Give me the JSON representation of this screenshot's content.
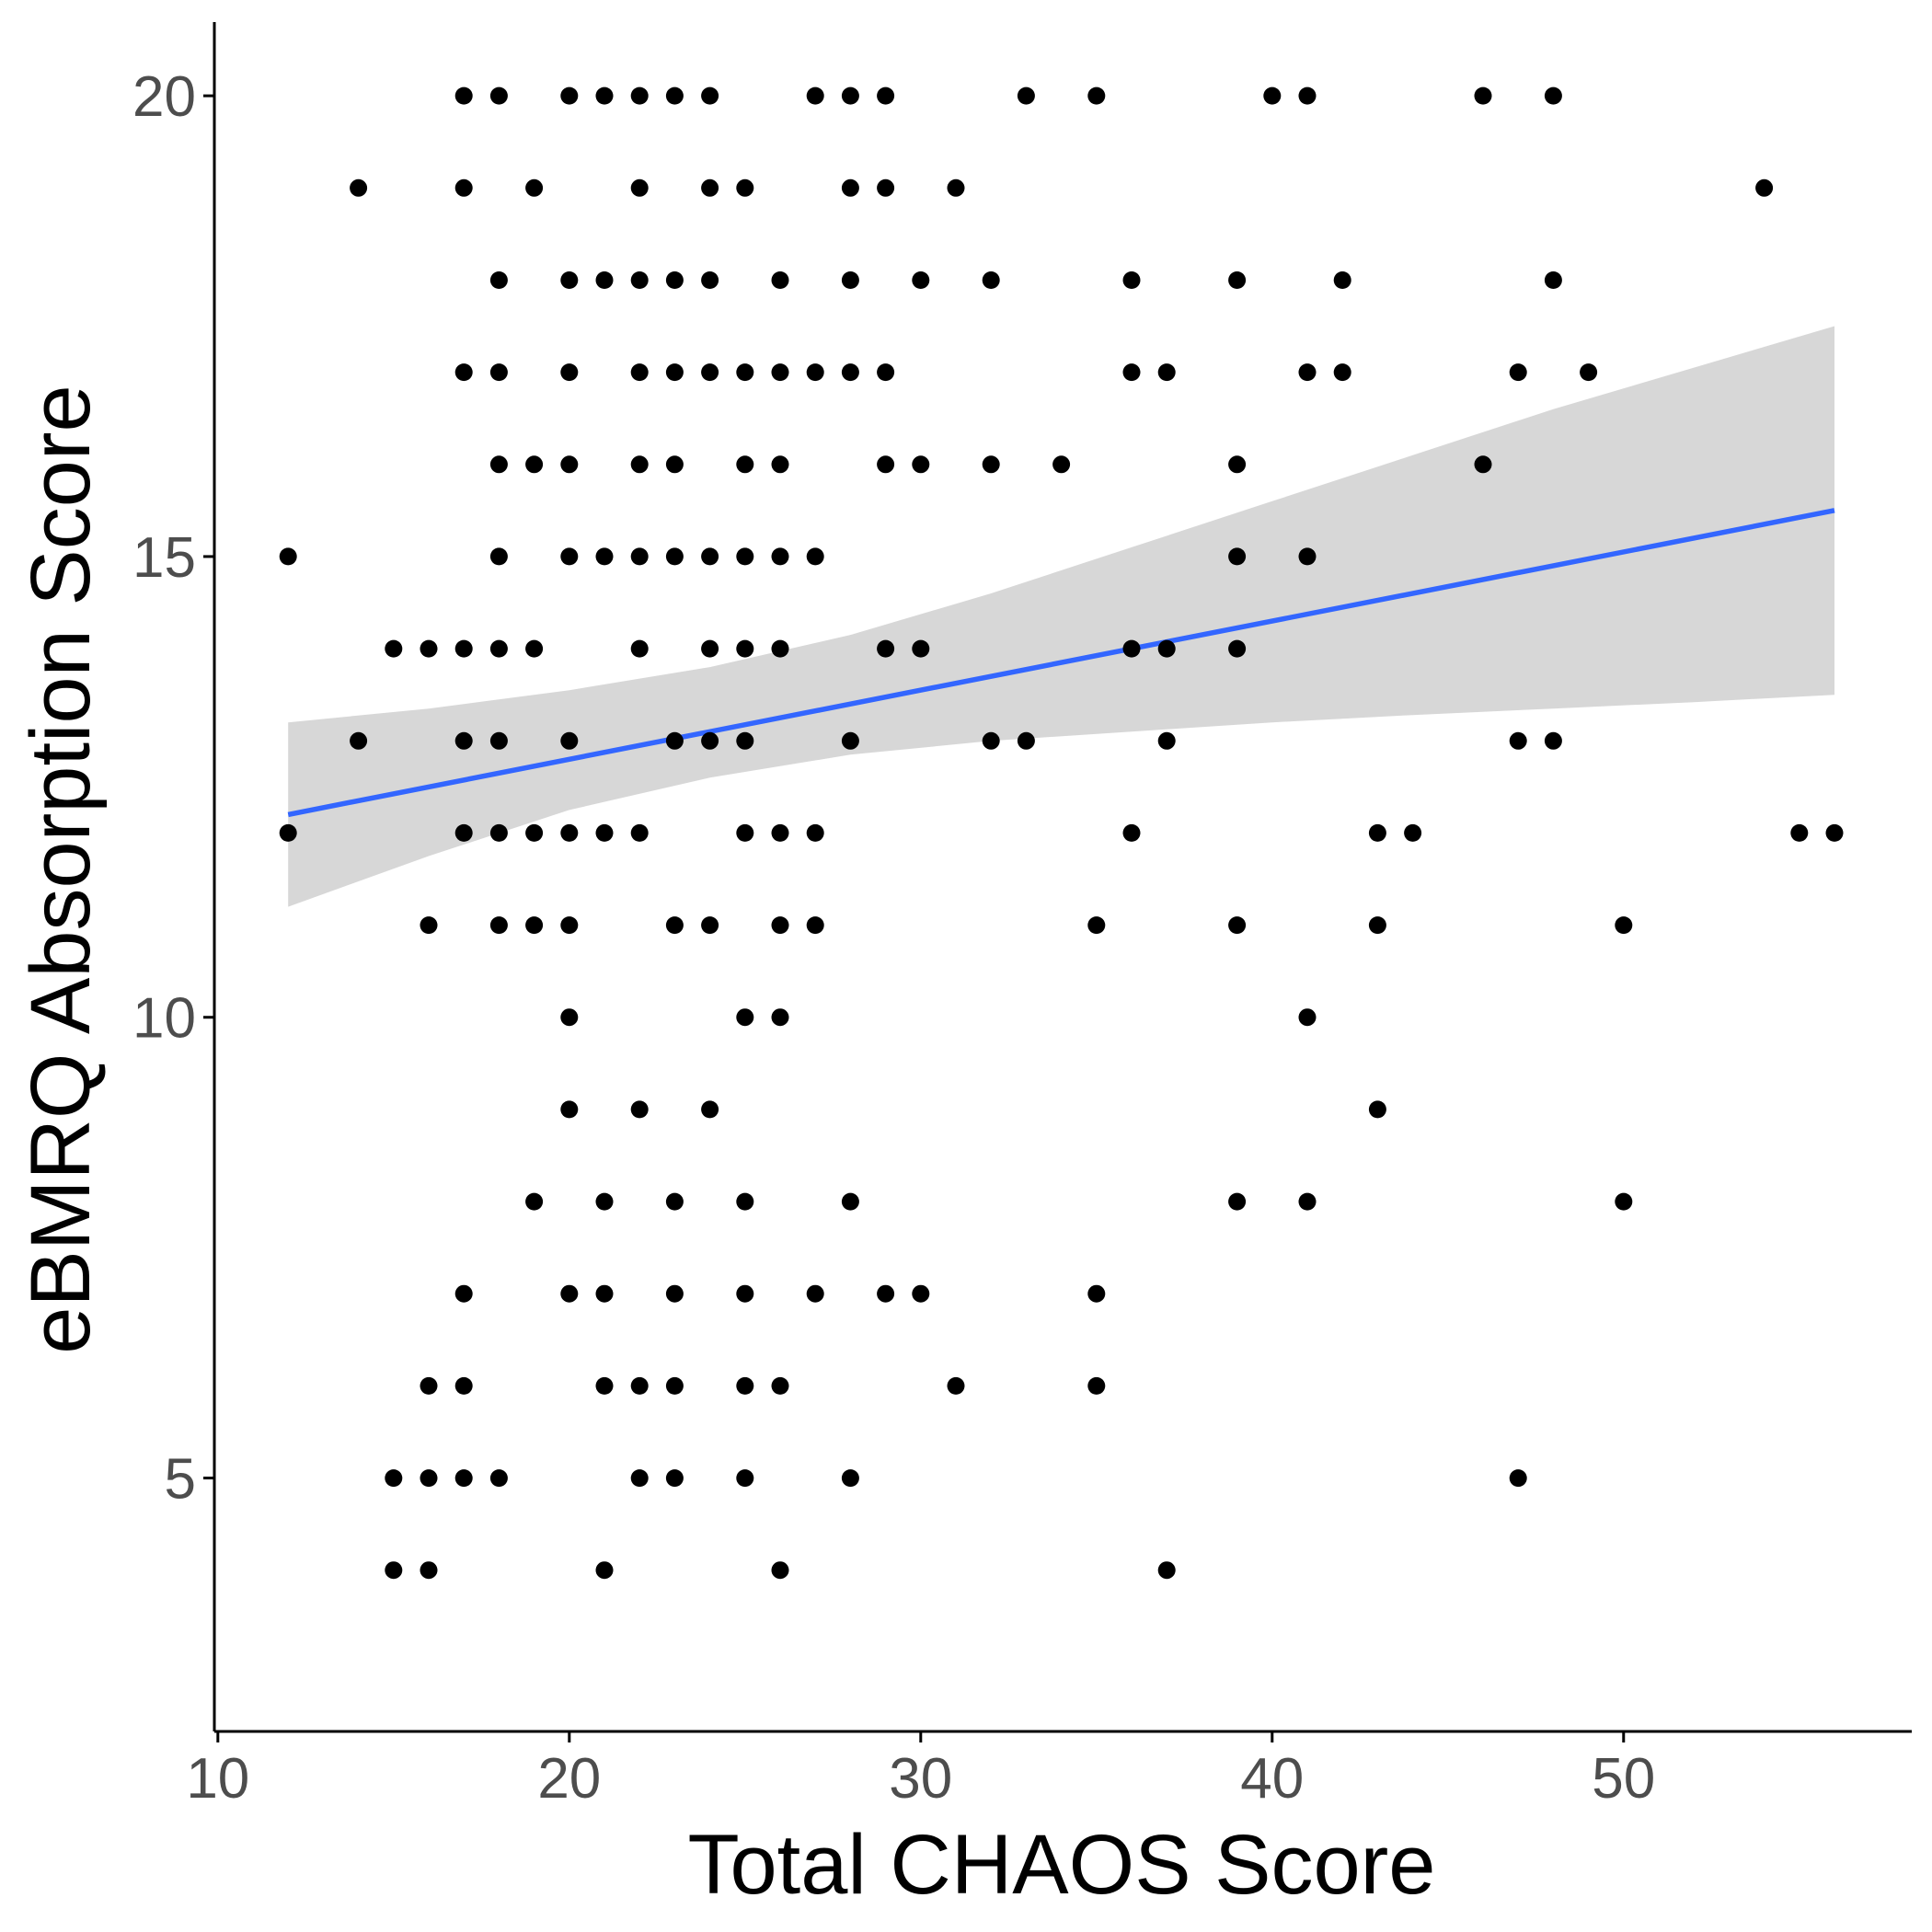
{
  "chart_data": {
    "type": "scatter",
    "xlabel": "Total CHAOS Score",
    "ylabel": "eBMRQ Absorption Score",
    "xlim": [
      9.9,
      58.2
    ],
    "ylim": [
      2.25,
      20.8
    ],
    "x_ticks": [
      10,
      20,
      30,
      40,
      50
    ],
    "y_ticks": [
      5,
      10,
      15,
      20
    ],
    "grid": false,
    "legend": "none",
    "colors": {
      "point": "#000000",
      "trend_line": "#3366ff",
      "confidence_band": "#d3d3d3",
      "axis": "#000000",
      "tick_label": "#4d4d4d"
    },
    "points": [
      [
        17,
        20
      ],
      [
        18,
        20
      ],
      [
        20,
        20
      ],
      [
        21,
        20
      ],
      [
        22,
        20
      ],
      [
        23,
        20
      ],
      [
        24,
        20
      ],
      [
        27,
        20
      ],
      [
        28,
        20
      ],
      [
        29,
        20
      ],
      [
        33,
        20
      ],
      [
        35,
        20
      ],
      [
        40,
        20
      ],
      [
        41,
        20
      ],
      [
        46,
        20
      ],
      [
        48,
        20
      ],
      [
        14,
        19
      ],
      [
        17,
        19
      ],
      [
        19,
        19
      ],
      [
        22,
        19
      ],
      [
        24,
        19
      ],
      [
        25,
        19
      ],
      [
        28,
        19
      ],
      [
        29,
        19
      ],
      [
        31,
        19
      ],
      [
        54,
        19
      ],
      [
        18,
        18
      ],
      [
        20,
        18
      ],
      [
        21,
        18
      ],
      [
        22,
        18
      ],
      [
        23,
        18
      ],
      [
        24,
        18
      ],
      [
        26,
        18
      ],
      [
        28,
        18
      ],
      [
        30,
        18
      ],
      [
        32,
        18
      ],
      [
        36,
        18
      ],
      [
        39,
        18
      ],
      [
        42,
        18
      ],
      [
        48,
        18
      ],
      [
        17,
        17
      ],
      [
        18,
        17
      ],
      [
        20,
        17
      ],
      [
        22,
        17
      ],
      [
        23,
        17
      ],
      [
        24,
        17
      ],
      [
        25,
        17
      ],
      [
        26,
        17
      ],
      [
        27,
        17
      ],
      [
        28,
        17
      ],
      [
        29,
        17
      ],
      [
        36,
        17
      ],
      [
        37,
        17
      ],
      [
        41,
        17
      ],
      [
        42,
        17
      ],
      [
        47,
        17
      ],
      [
        49,
        17
      ],
      [
        18,
        16
      ],
      [
        19,
        16
      ],
      [
        20,
        16
      ],
      [
        22,
        16
      ],
      [
        23,
        16
      ],
      [
        25,
        16
      ],
      [
        26,
        16
      ],
      [
        29,
        16
      ],
      [
        30,
        16
      ],
      [
        32,
        16
      ],
      [
        34,
        16
      ],
      [
        39,
        16
      ],
      [
        46,
        16
      ],
      [
        12,
        15
      ],
      [
        18,
        15
      ],
      [
        20,
        15
      ],
      [
        21,
        15
      ],
      [
        22,
        15
      ],
      [
        23,
        15
      ],
      [
        24,
        15
      ],
      [
        25,
        15
      ],
      [
        26,
        15
      ],
      [
        27,
        15
      ],
      [
        39,
        15
      ],
      [
        41,
        15
      ],
      [
        15,
        14
      ],
      [
        16,
        14
      ],
      [
        17,
        14
      ],
      [
        18,
        14
      ],
      [
        19,
        14
      ],
      [
        22,
        14
      ],
      [
        24,
        14
      ],
      [
        25,
        14
      ],
      [
        26,
        14
      ],
      [
        29,
        14
      ],
      [
        30,
        14
      ],
      [
        36,
        14
      ],
      [
        37,
        14
      ],
      [
        39,
        14
      ],
      [
        14,
        13
      ],
      [
        17,
        13
      ],
      [
        18,
        13
      ],
      [
        20,
        13
      ],
      [
        23,
        13
      ],
      [
        24,
        13
      ],
      [
        25,
        13
      ],
      [
        28,
        13
      ],
      [
        32,
        13
      ],
      [
        33,
        13
      ],
      [
        37,
        13
      ],
      [
        47,
        13
      ],
      [
        48,
        13
      ],
      [
        12,
        12
      ],
      [
        17,
        12
      ],
      [
        18,
        12
      ],
      [
        19,
        12
      ],
      [
        20,
        12
      ],
      [
        21,
        12
      ],
      [
        22,
        12
      ],
      [
        25,
        12
      ],
      [
        26,
        12
      ],
      [
        27,
        12
      ],
      [
        36,
        12
      ],
      [
        43,
        12
      ],
      [
        44,
        12
      ],
      [
        55,
        12
      ],
      [
        56,
        12
      ],
      [
        16,
        11
      ],
      [
        18,
        11
      ],
      [
        19,
        11
      ],
      [
        20,
        11
      ],
      [
        23,
        11
      ],
      [
        24,
        11
      ],
      [
        26,
        11
      ],
      [
        27,
        11
      ],
      [
        35,
        11
      ],
      [
        39,
        11
      ],
      [
        43,
        11
      ],
      [
        50,
        11
      ],
      [
        20,
        10
      ],
      [
        25,
        10
      ],
      [
        26,
        10
      ],
      [
        41,
        10
      ],
      [
        20,
        9
      ],
      [
        22,
        9
      ],
      [
        24,
        9
      ],
      [
        43,
        9
      ],
      [
        19,
        8
      ],
      [
        21,
        8
      ],
      [
        23,
        8
      ],
      [
        25,
        8
      ],
      [
        28,
        8
      ],
      [
        39,
        8
      ],
      [
        41,
        8
      ],
      [
        50,
        8
      ],
      [
        17,
        7
      ],
      [
        20,
        7
      ],
      [
        21,
        7
      ],
      [
        23,
        7
      ],
      [
        25,
        7
      ],
      [
        27,
        7
      ],
      [
        29,
        7
      ],
      [
        30,
        7
      ],
      [
        35,
        7
      ],
      [
        16,
        6
      ],
      [
        17,
        6
      ],
      [
        21,
        6
      ],
      [
        22,
        6
      ],
      [
        23,
        6
      ],
      [
        25,
        6
      ],
      [
        26,
        6
      ],
      [
        31,
        6
      ],
      [
        35,
        6
      ],
      [
        15,
        5
      ],
      [
        16,
        5
      ],
      [
        17,
        5
      ],
      [
        18,
        5
      ],
      [
        22,
        5
      ],
      [
        23,
        5
      ],
      [
        25,
        5
      ],
      [
        28,
        5
      ],
      [
        47,
        5
      ],
      [
        15,
        4
      ],
      [
        16,
        4
      ],
      [
        21,
        4
      ],
      [
        26,
        4
      ],
      [
        37,
        4
      ]
    ],
    "trend_line": {
      "x": [
        12,
        56
      ],
      "y": [
        12.2,
        15.5
      ]
    },
    "confidence_band": {
      "x": [
        12,
        16,
        20,
        24,
        28,
        32,
        36,
        40,
        44,
        48,
        52,
        56
      ],
      "lower": [
        11.2,
        11.75,
        12.25,
        12.6,
        12.85,
        13.0,
        13.1,
        13.2,
        13.28,
        13.35,
        13.42,
        13.5
      ],
      "upper": [
        13.2,
        13.35,
        13.55,
        13.8,
        14.15,
        14.6,
        15.1,
        15.6,
        16.1,
        16.6,
        17.05,
        17.5
      ]
    }
  }
}
